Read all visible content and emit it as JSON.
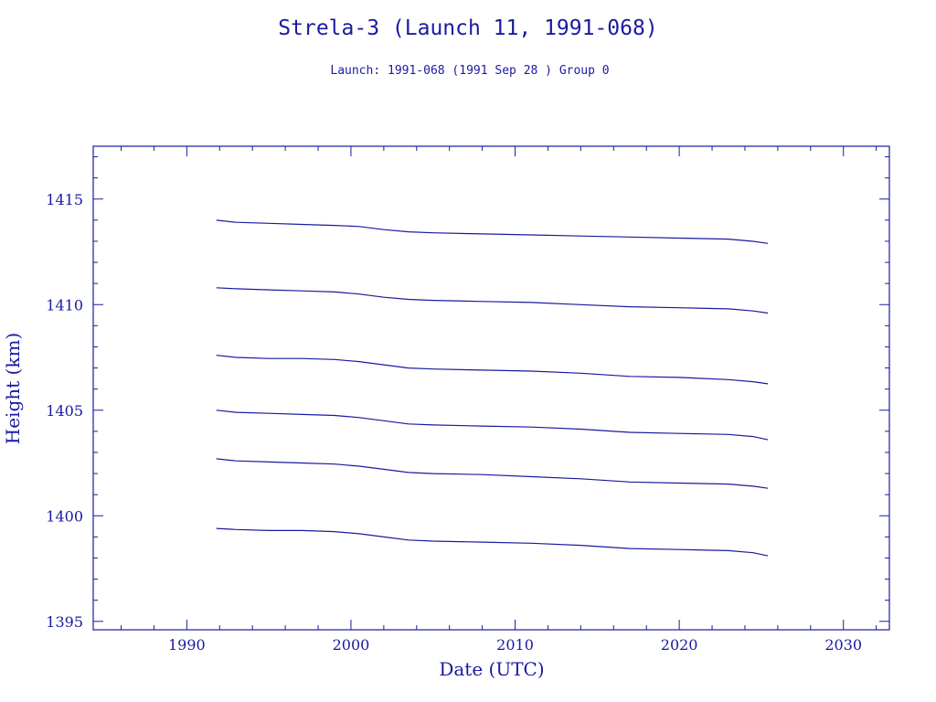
{
  "colors": {
    "ink": "#1a1aa0"
  },
  "chart_data": {
    "type": "line",
    "title": "Strela-3 (Launch 11, 1991-068)",
    "subtitle": "Launch: 1991-068  (1991 Sep 28 )  Group 0",
    "xlabel": "Date (UTC)",
    "ylabel": "Height (km)",
    "xlim": [
      1984.3,
      2032.8
    ],
    "ylim": [
      1394.6,
      1417.5
    ],
    "x_ticks": [
      1990,
      2000,
      2010,
      2020,
      2030
    ],
    "x_tick_labels": [
      "1990",
      "2000",
      "2010",
      "2020",
      "2030"
    ],
    "y_ticks": [
      1395,
      1400,
      1405,
      1410,
      1415
    ],
    "y_tick_labels": [
      "1395",
      "1400",
      "1405",
      "1410",
      "1415"
    ],
    "grid": false,
    "series": [
      {
        "x": [
          1991.8,
          1993,
          1995,
          1997,
          1999,
          2000.5,
          2002,
          2003.5,
          2005,
          2008,
          2011,
          2014,
          2017,
          2020,
          2023,
          2024.5,
          2025.4
        ],
        "values": [
          1414.0,
          1413.9,
          1413.85,
          1413.8,
          1413.75,
          1413.7,
          1413.55,
          1413.45,
          1413.4,
          1413.35,
          1413.3,
          1413.25,
          1413.2,
          1413.15,
          1413.1,
          1413.0,
          1412.9
        ]
      },
      {
        "x": [
          1991.8,
          1993,
          1995,
          1997,
          1999,
          2000.5,
          2002,
          2003.5,
          2005,
          2008,
          2011,
          2014,
          2017,
          2020,
          2023,
          2024.5,
          2025.4
        ],
        "values": [
          1410.8,
          1410.75,
          1410.7,
          1410.65,
          1410.6,
          1410.5,
          1410.35,
          1410.25,
          1410.2,
          1410.15,
          1410.1,
          1410.0,
          1409.9,
          1409.85,
          1409.8,
          1409.7,
          1409.6
        ]
      },
      {
        "x": [
          1991.8,
          1993,
          1995,
          1997,
          1999,
          2000.5,
          2002,
          2003.5,
          2005,
          2008,
          2011,
          2014,
          2017,
          2020,
          2023,
          2024.5,
          2025.4
        ],
        "values": [
          1407.6,
          1407.5,
          1407.45,
          1407.45,
          1407.4,
          1407.3,
          1407.15,
          1407.0,
          1406.95,
          1406.9,
          1406.85,
          1406.75,
          1406.6,
          1406.55,
          1406.45,
          1406.35,
          1406.25
        ]
      },
      {
        "x": [
          1991.8,
          1993,
          1995,
          1997,
          1999,
          2000.5,
          2002,
          2003.5,
          2005,
          2008,
          2011,
          2014,
          2017,
          2020,
          2023,
          2024.5,
          2025.4
        ],
        "values": [
          1405.0,
          1404.9,
          1404.85,
          1404.8,
          1404.75,
          1404.65,
          1404.5,
          1404.35,
          1404.3,
          1404.25,
          1404.2,
          1404.1,
          1403.95,
          1403.9,
          1403.85,
          1403.75,
          1403.6
        ]
      },
      {
        "x": [
          1991.8,
          1993,
          1995,
          1997,
          1999,
          2000.5,
          2002,
          2003.5,
          2005,
          2008,
          2011,
          2014,
          2017,
          2020,
          2023,
          2024.5,
          2025.4
        ],
        "values": [
          1402.7,
          1402.6,
          1402.55,
          1402.5,
          1402.45,
          1402.35,
          1402.2,
          1402.05,
          1402.0,
          1401.95,
          1401.85,
          1401.75,
          1401.6,
          1401.55,
          1401.5,
          1401.4,
          1401.3
        ]
      },
      {
        "x": [
          1991.8,
          1993,
          1995,
          1997,
          1999,
          2000.5,
          2002,
          2003.5,
          2005,
          2008,
          2011,
          2014,
          2017,
          2020,
          2023,
          2024.5,
          2025.4
        ],
        "values": [
          1399.4,
          1399.35,
          1399.3,
          1399.3,
          1399.25,
          1399.15,
          1399.0,
          1398.85,
          1398.8,
          1398.75,
          1398.7,
          1398.6,
          1398.45,
          1398.4,
          1398.35,
          1398.25,
          1398.1
        ]
      }
    ]
  }
}
